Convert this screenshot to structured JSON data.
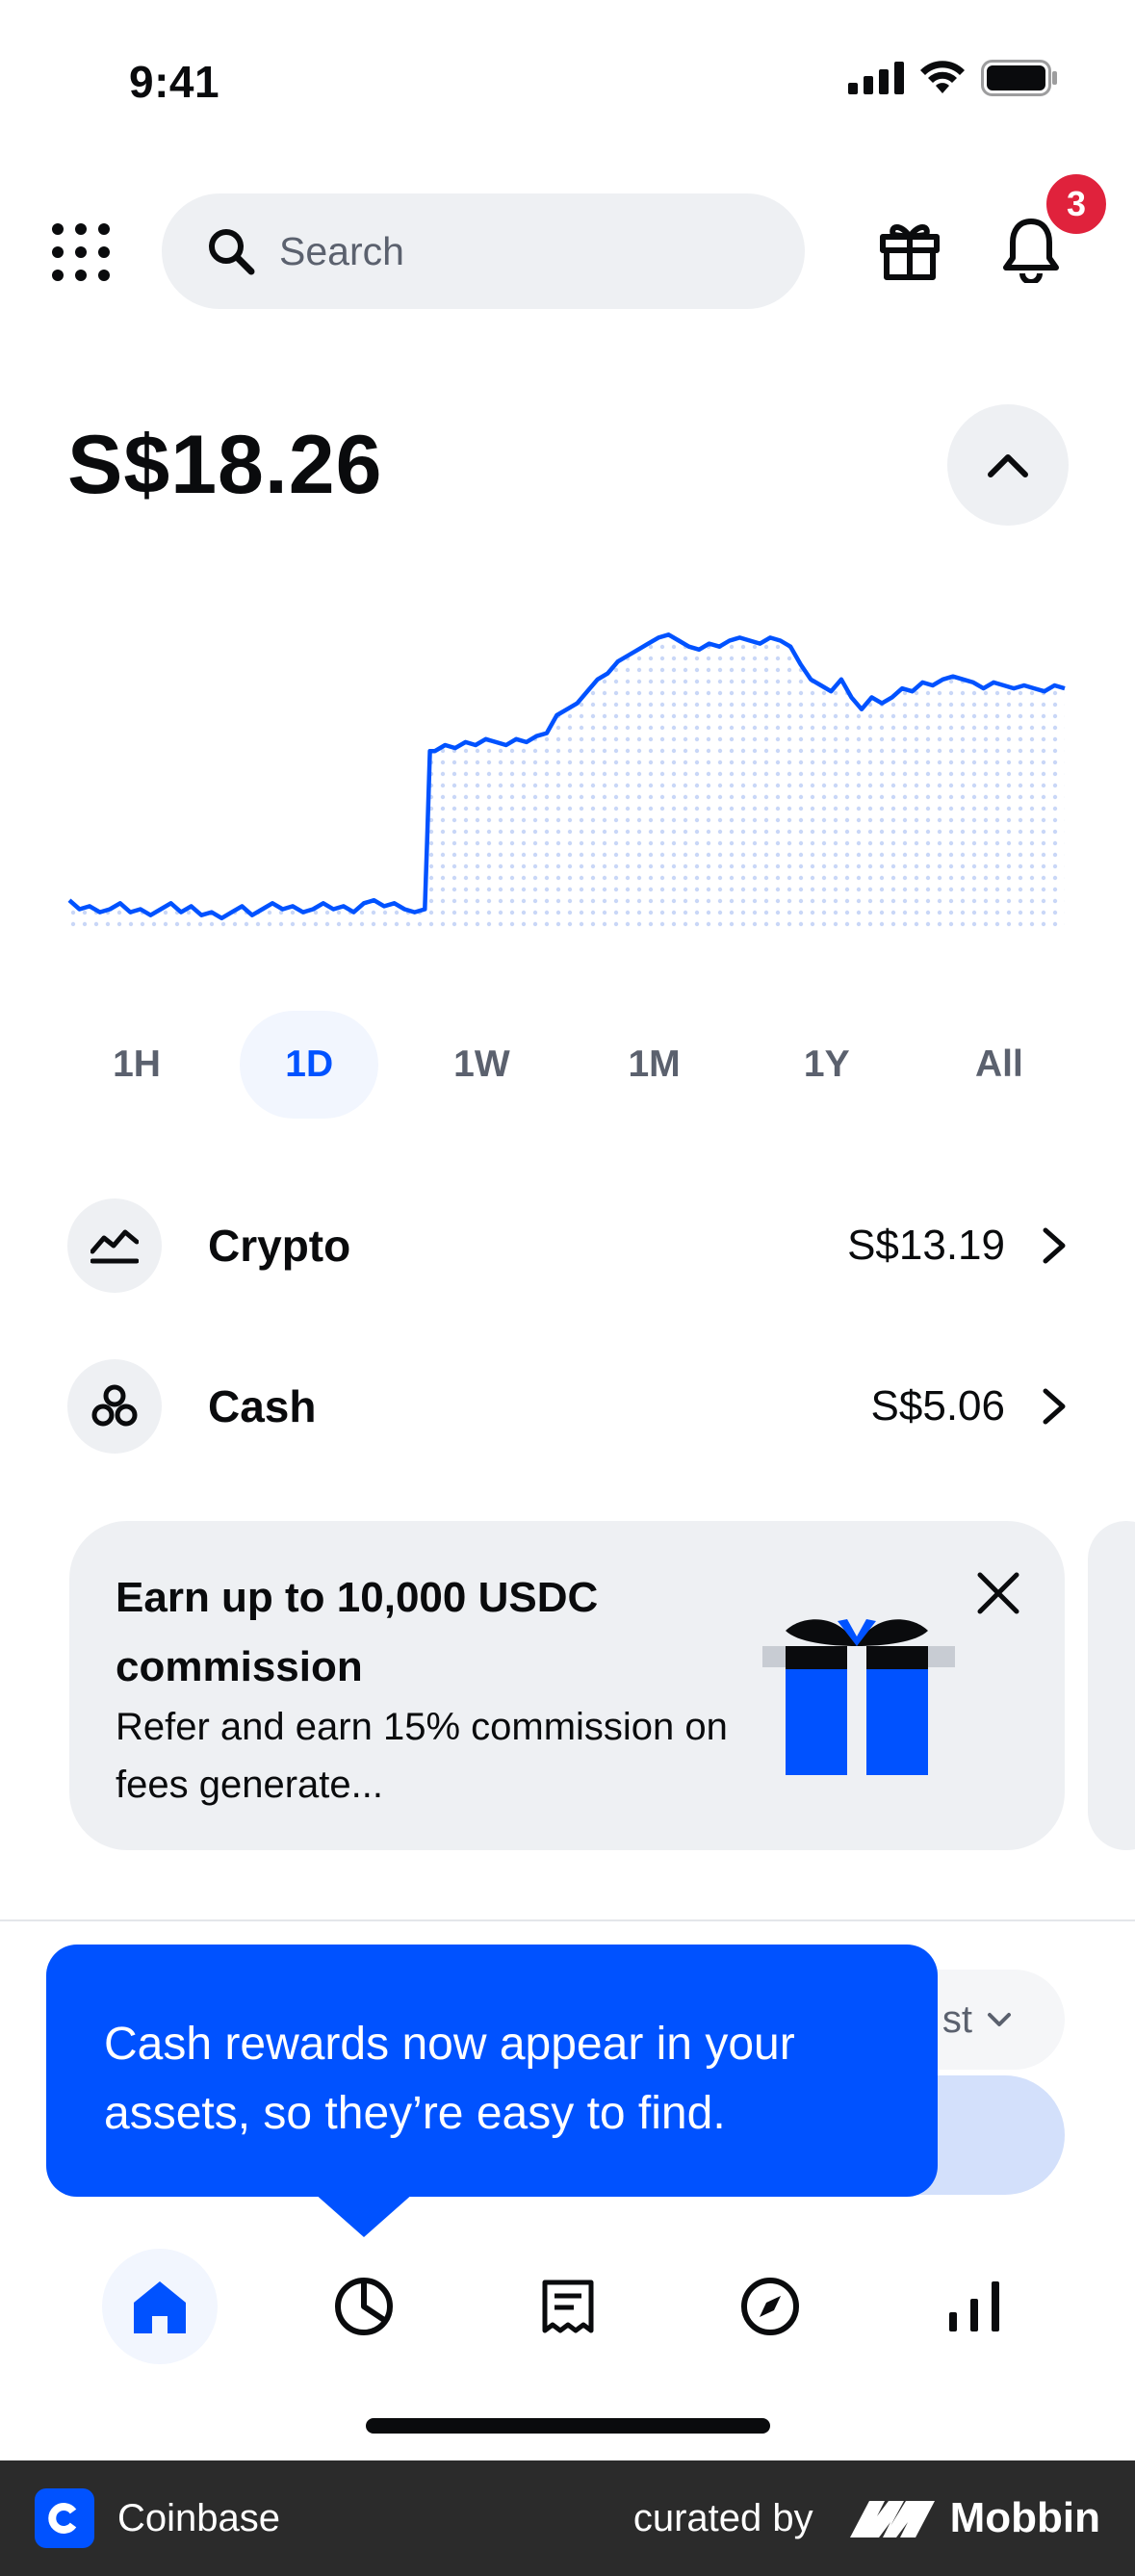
{
  "status_bar": {
    "time": "9:41"
  },
  "header": {
    "search_placeholder": "Search",
    "notification_count": "3"
  },
  "balance": {
    "amount": "S$18.26"
  },
  "chart_data": {
    "type": "line",
    "series_color": "#0052ff",
    "fill": "dotted",
    "points": [
      [
        0,
        0.92
      ],
      [
        2,
        0.95
      ],
      [
        4,
        0.94
      ],
      [
        6,
        0.96
      ],
      [
        8,
        0.95
      ],
      [
        10,
        0.93
      ],
      [
        12,
        0.96
      ],
      [
        14,
        0.95
      ],
      [
        16,
        0.97
      ],
      [
        18,
        0.95
      ],
      [
        20,
        0.93
      ],
      [
        22,
        0.96
      ],
      [
        24,
        0.94
      ],
      [
        26,
        0.97
      ],
      [
        28,
        0.96
      ],
      [
        30,
        0.98
      ],
      [
        32,
        0.96
      ],
      [
        34,
        0.94
      ],
      [
        36,
        0.97
      ],
      [
        38,
        0.95
      ],
      [
        40,
        0.93
      ],
      [
        42,
        0.95
      ],
      [
        44,
        0.94
      ],
      [
        46,
        0.96
      ],
      [
        48,
        0.95
      ],
      [
        50,
        0.93
      ],
      [
        52,
        0.95
      ],
      [
        54,
        0.94
      ],
      [
        56,
        0.96
      ],
      [
        58,
        0.93
      ],
      [
        60,
        0.92
      ],
      [
        62,
        0.94
      ],
      [
        64,
        0.93
      ],
      [
        66,
        0.95
      ],
      [
        68,
        0.96
      ],
      [
        70,
        0.95
      ],
      [
        70.5,
        0.7
      ],
      [
        71,
        0.42
      ],
      [
        72,
        0.42
      ],
      [
        74,
        0.4
      ],
      [
        76,
        0.41
      ],
      [
        78,
        0.39
      ],
      [
        80,
        0.4
      ],
      [
        82,
        0.38
      ],
      [
        84,
        0.39
      ],
      [
        86,
        0.4
      ],
      [
        88,
        0.38
      ],
      [
        90,
        0.39
      ],
      [
        92,
        0.37
      ],
      [
        94,
        0.36
      ],
      [
        96,
        0.3
      ],
      [
        98,
        0.28
      ],
      [
        100,
        0.26
      ],
      [
        102,
        0.22
      ],
      [
        104,
        0.18
      ],
      [
        106,
        0.16
      ],
      [
        108,
        0.12
      ],
      [
        110,
        0.1
      ],
      [
        112,
        0.08
      ],
      [
        114,
        0.06
      ],
      [
        116,
        0.04
      ],
      [
        118,
        0.03
      ],
      [
        120,
        0.05
      ],
      [
        122,
        0.07
      ],
      [
        124,
        0.08
      ],
      [
        126,
        0.06
      ],
      [
        128,
        0.07
      ],
      [
        130,
        0.05
      ],
      [
        132,
        0.04
      ],
      [
        134,
        0.05
      ],
      [
        136,
        0.06
      ],
      [
        138,
        0.04
      ],
      [
        140,
        0.05
      ],
      [
        142,
        0.07
      ],
      [
        144,
        0.13
      ],
      [
        146,
        0.18
      ],
      [
        148,
        0.2
      ],
      [
        150,
        0.22
      ],
      [
        152,
        0.18
      ],
      [
        154,
        0.24
      ],
      [
        156,
        0.28
      ],
      [
        158,
        0.24
      ],
      [
        160,
        0.26
      ],
      [
        162,
        0.24
      ],
      [
        164,
        0.21
      ],
      [
        166,
        0.22
      ],
      [
        168,
        0.19
      ],
      [
        170,
        0.2
      ],
      [
        172,
        0.18
      ],
      [
        174,
        0.17
      ],
      [
        176,
        0.18
      ],
      [
        178,
        0.19
      ],
      [
        180,
        0.21
      ],
      [
        182,
        0.19
      ],
      [
        184,
        0.2
      ],
      [
        186,
        0.21
      ],
      [
        188,
        0.2
      ],
      [
        190,
        0.21
      ],
      [
        192,
        0.22
      ],
      [
        194,
        0.2
      ],
      [
        196,
        0.21
      ]
    ],
    "ranges": [
      "1H",
      "1D",
      "1W",
      "1M",
      "1Y",
      "All"
    ],
    "active_range": "1D"
  },
  "assets": [
    {
      "name": "Crypto",
      "value": "S$13.19",
      "icon": "chart-trend-icon"
    },
    {
      "name": "Cash",
      "value": "S$5.06",
      "icon": "coins-icon"
    }
  ],
  "promo": {
    "title": "Earn up to 10,000 USDC commission",
    "body": "Refer and earn 15% commission on fees generate..."
  },
  "sort_label": "st",
  "tooltip": {
    "text": "Cash rewards now appear in your assets, so they’re easy to find."
  },
  "tabs": [
    {
      "name": "home",
      "icon": "home-icon",
      "active": true
    },
    {
      "name": "portfolio",
      "icon": "pie-chart-icon",
      "active": false
    },
    {
      "name": "transactions",
      "icon": "receipt-icon",
      "active": false
    },
    {
      "name": "explore",
      "icon": "compass-icon",
      "active": false
    },
    {
      "name": "trade",
      "icon": "bar-chart-icon",
      "active": false
    }
  ],
  "footer": {
    "app_name": "Coinbase",
    "curated_by": "curated by",
    "brand": "Mobbin"
  },
  "colors": {
    "accent": "#0052ff",
    "badge": "#e0223c",
    "surface": "#eef0f3"
  }
}
